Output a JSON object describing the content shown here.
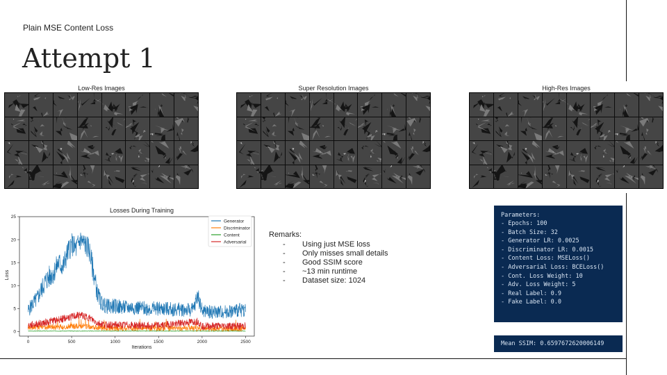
{
  "slide": {
    "subtitle": "Plain MSE Content Loss",
    "title": "Attempt 1"
  },
  "image_panels": [
    {
      "title": "Low-Res Images",
      "kind": "lowres"
    },
    {
      "title": "Super Resolution Images",
      "kind": "sr"
    },
    {
      "title": "High-Res Images",
      "kind": "hr"
    }
  ],
  "remarks": {
    "heading": "Remarks:",
    "items": [
      "Using just MSE loss",
      "Only misses small details",
      "Good SSIM score",
      "~13 min runtime",
      "Dataset size: 1024"
    ]
  },
  "parameters": {
    "title": "Parameters:",
    "lines": [
      "- Epochs: 100",
      "- Batch Size: 32",
      "- Generator LR: 0.0025",
      "- Discriminator LR: 0.0015",
      "- Content Loss: MSELoss()",
      "- Adversarial Loss: BCELoss()",
      "- Cont. Loss Weight: 10",
      "- Adv. Loss Weight: 5",
      "- Real Label: 0.9",
      "- Fake Label: 0.0"
    ]
  },
  "ssim": {
    "text": "Mean SSIM: 0.6597672620006149"
  },
  "chart_data": {
    "type": "line",
    "title": "Losses During Training",
    "xlabel": "Iterations",
    "ylabel": "Loss",
    "xlim": [
      -100,
      2600
    ],
    "ylim": [
      -1,
      25
    ],
    "xticks": [
      0,
      500,
      1000,
      1500,
      2000,
      2500
    ],
    "yticks": [
      0,
      5,
      10,
      15,
      20,
      25
    ],
    "legend": "top-right",
    "series": [
      {
        "name": "Generator",
        "color": "#1f77b4",
        "x": [
          0,
          50,
          100,
          150,
          200,
          250,
          300,
          350,
          400,
          450,
          500,
          550,
          600,
          650,
          700,
          750,
          800,
          850,
          900,
          1000,
          1100,
          1200,
          1300,
          1400,
          1500,
          1600,
          1700,
          1800,
          1900,
          1950,
          2000,
          2100,
          2200,
          2300,
          2400,
          2500
        ],
        "y": [
          4.5,
          6,
          7,
          9,
          11,
          12,
          13,
          15,
          14,
          17,
          19,
          18,
          20,
          19,
          18,
          13,
          8,
          6,
          5.5,
          5.5,
          5.2,
          5.3,
          5.1,
          5.0,
          5.0,
          4.9,
          4.8,
          4.8,
          4.7,
          8,
          4.5,
          4.3,
          4.3,
          4.4,
          4.6,
          4.8
        ],
        "noise": 2.5
      },
      {
        "name": "Discriminator",
        "color": "#ff7f0e",
        "x": [
          0,
          100,
          200,
          300,
          400,
          500,
          600,
          700,
          800,
          1000,
          1500,
          2000,
          2500
        ],
        "y": [
          0.8,
          0.9,
          1.0,
          1.0,
          1.0,
          1.1,
          1.2,
          1.1,
          0.8,
          0.7,
          0.7,
          0.6,
          0.6
        ],
        "noise": 0.6
      },
      {
        "name": "Content",
        "color": "#2ca02c",
        "x": [
          0,
          500,
          1000,
          1500,
          2000,
          2500
        ],
        "y": [
          0.1,
          0.1,
          0.1,
          0.1,
          0.1,
          0.1
        ],
        "noise": 0.05
      },
      {
        "name": "Adversarial",
        "color": "#d62728",
        "x": [
          0,
          100,
          200,
          300,
          400,
          500,
          600,
          700,
          800,
          900,
          1000,
          1500,
          1950,
          2000,
          2500
        ],
        "y": [
          1.3,
          1.6,
          2.0,
          2.4,
          2.8,
          3.2,
          3.6,
          3.0,
          1.8,
          1.5,
          1.4,
          1.3,
          2.2,
          1.2,
          1.2
        ],
        "noise": 0.8
      }
    ]
  }
}
